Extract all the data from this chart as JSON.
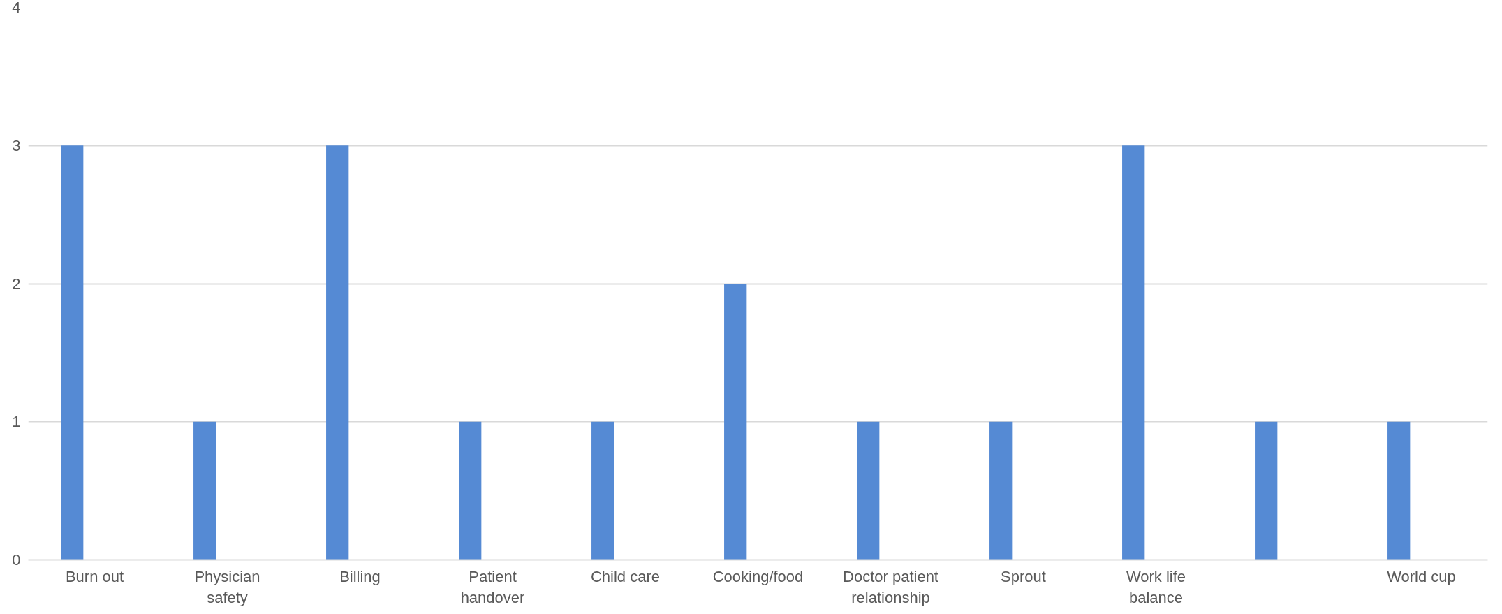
{
  "chart_data": {
    "type": "bar",
    "categories": [
      "Burn out",
      "Physician safety",
      "Billing",
      "Patient handover",
      "Child care",
      "Cooking/food",
      "Doctor patient relationship",
      "Sprout",
      "Work life balance",
      null,
      "World cup"
    ],
    "values": [
      3,
      1,
      3,
      1,
      1,
      2,
      1,
      1,
      3,
      1,
      1
    ],
    "color": "#558ad4",
    "ylim": [
      0,
      4
    ],
    "yticks": [
      0,
      1,
      2,
      3,
      4
    ],
    "grid": "y"
  }
}
